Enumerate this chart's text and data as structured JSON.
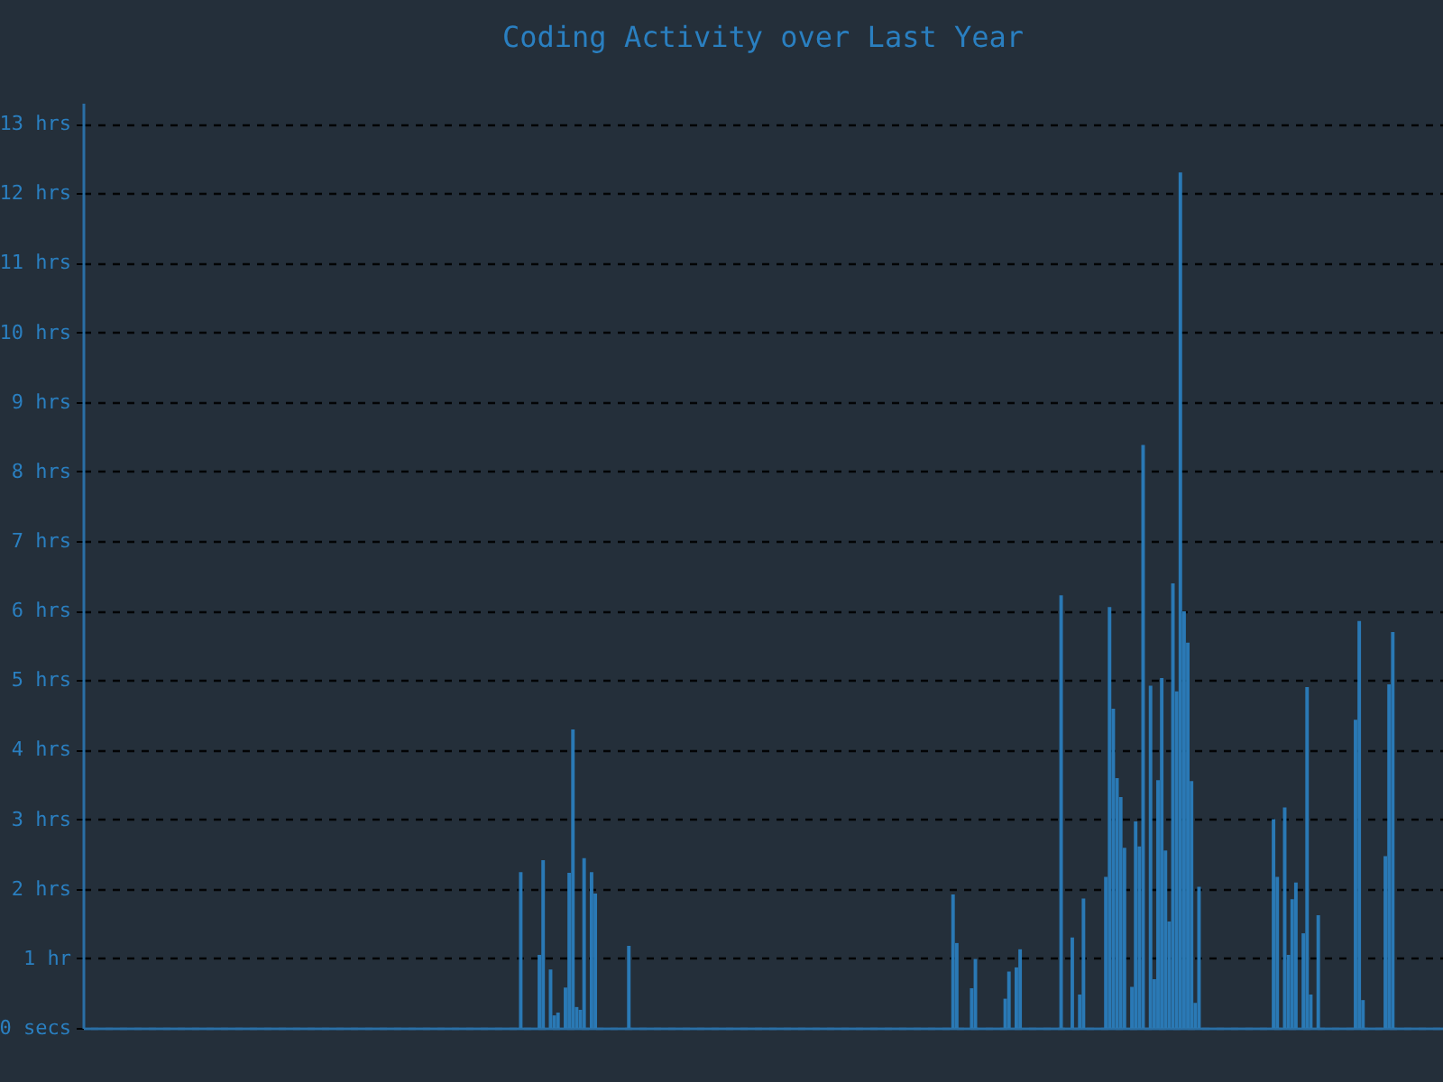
{
  "chart_data": {
    "type": "bar",
    "title": "Coding Activity over Last Year",
    "color": "#2a79b5",
    "grid": true,
    "tick_labels": "y",
    "ylim": [
      0,
      13.3
    ],
    "yticks": [
      {
        "value": 0,
        "label": "0 secs"
      },
      {
        "value": 1,
        "label": "1 hr"
      },
      {
        "value": 2,
        "label": "2 hrs"
      },
      {
        "value": 3,
        "label": "3 hrs"
      },
      {
        "value": 4,
        "label": "4 hrs"
      },
      {
        "value": 5,
        "label": "5 hrs"
      },
      {
        "value": 6,
        "label": "6 hrs"
      },
      {
        "value": 7,
        "label": "7 hrs"
      },
      {
        "value": 8,
        "label": "8 hrs"
      },
      {
        "value": 9,
        "label": "9 hrs"
      },
      {
        "value": 10,
        "label": "10 hrs"
      },
      {
        "value": 11,
        "label": "11 hrs"
      },
      {
        "value": 12,
        "label": "12 hrs"
      },
      {
        "value": 13,
        "label": "13 hrs"
      }
    ],
    "categories": [
      null,
      null,
      null,
      null,
      null,
      null,
      null,
      null,
      null,
      null,
      null,
      null,
      null,
      null,
      null,
      null,
      null,
      null,
      null,
      null,
      null,
      null,
      null,
      null,
      null,
      null,
      null,
      null,
      null,
      null,
      null,
      null,
      null,
      null,
      null,
      null,
      null,
      null,
      null,
      null,
      null,
      null,
      null,
      null,
      null,
      null,
      null,
      null,
      null,
      null,
      null,
      null,
      null,
      null,
      null,
      null,
      null,
      null,
      null,
      null,
      null,
      null,
      null,
      null,
      null,
      null,
      null,
      null,
      null,
      null,
      null,
      null,
      null,
      null,
      null,
      null,
      null,
      null,
      null,
      null,
      null,
      null,
      null,
      null,
      null,
      null,
      null,
      null,
      null,
      null,
      null,
      null,
      null,
      null,
      null,
      null,
      null,
      null,
      null,
      null,
      null,
      null,
      null,
      null,
      null,
      null,
      null,
      null,
      null,
      null,
      null,
      null,
      null,
      null,
      null,
      null,
      null,
      null,
      null,
      null,
      null,
      null,
      null,
      null,
      null,
      null,
      null,
      null,
      null,
      null,
      null,
      null,
      null,
      null,
      null,
      null,
      null,
      null,
      null,
      null,
      null,
      null,
      null,
      null,
      null,
      null,
      null,
      null,
      null,
      null,
      null,
      null,
      null,
      null,
      null,
      null,
      null,
      null,
      null,
      null,
      null,
      null,
      null,
      null,
      null,
      null,
      null,
      null,
      null,
      null,
      null,
      null,
      null,
      null,
      null,
      null,
      null,
      null,
      null,
      null,
      null,
      null,
      null,
      null,
      null,
      null,
      null,
      null,
      null,
      null,
      null,
      null,
      null,
      null,
      null,
      null,
      null,
      null,
      null,
      null,
      null,
      null,
      null,
      null,
      null,
      null,
      null,
      null,
      null,
      null,
      null,
      null,
      null,
      null,
      null,
      null,
      null,
      null,
      null,
      null,
      null,
      null,
      null,
      null,
      null,
      null,
      null,
      null,
      null,
      null,
      null,
      null,
      null,
      null,
      null,
      null,
      null,
      null,
      null,
      null,
      null,
      null,
      null,
      null,
      null,
      null,
      null,
      null,
      null,
      null,
      null,
      null,
      null,
      null,
      null,
      null,
      null,
      null,
      null,
      null,
      null,
      null,
      null,
      null,
      null,
      null,
      null,
      null,
      null,
      null,
      null,
      null,
      null,
      null,
      null,
      null,
      null,
      null,
      null,
      null,
      null,
      null,
      null,
      null,
      null,
      null,
      null,
      null,
      null,
      null,
      null,
      null,
      null,
      null,
      null,
      null,
      null,
      null,
      null,
      null,
      null,
      null,
      null,
      null,
      null,
      null,
      null,
      null,
      null,
      null,
      null,
      null,
      null,
      null,
      null,
      null,
      null,
      null,
      null,
      null,
      null,
      null,
      null,
      null,
      null,
      null,
      null,
      null,
      null,
      null,
      null,
      null,
      null,
      null,
      null,
      null,
      null,
      null,
      null,
      null,
      null,
      null,
      null,
      null,
      null,
      null,
      null,
      null,
      null,
      null,
      null,
      null,
      null,
      null,
      null,
      null,
      null,
      null,
      null,
      null,
      null,
      null,
      null,
      null,
      null
    ],
    "values": [
      0,
      0,
      0,
      0,
      0,
      0,
      0,
      0,
      0,
      0,
      0,
      0,
      0,
      0,
      0,
      0,
      0,
      0,
      0,
      0,
      0,
      0,
      0,
      0,
      0,
      0,
      0,
      0,
      0,
      0,
      0,
      0,
      0,
      0,
      0,
      0,
      0,
      0,
      0,
      0,
      0,
      0,
      0,
      0,
      0,
      0,
      0,
      0,
      0,
      0,
      0,
      0,
      0,
      0,
      0,
      0,
      0,
      0,
      0,
      0,
      0,
      0,
      0,
      0,
      0,
      0,
      0,
      0,
      0,
      0,
      0,
      0,
      0,
      0,
      0,
      0,
      0,
      0,
      0,
      0,
      0,
      0,
      0,
      0,
      0,
      0,
      0,
      0,
      0,
      0,
      0,
      0,
      0,
      0,
      0,
      0,
      0,
      0,
      0,
      0,
      0,
      0,
      0,
      0,
      0,
      0,
      0,
      0,
      0,
      0,
      0,
      0,
      0,
      0,
      0,
      0,
      0,
      2.24,
      0,
      0,
      0,
      0,
      1.05,
      2.41,
      0,
      0.84,
      0.18,
      0.22,
      0,
      0.58,
      2.23,
      4.29,
      0.3,
      0.26,
      2.44,
      0,
      2.24,
      1.93,
      0,
      0,
      0,
      0,
      0,
      0,
      0,
      0,
      1.18,
      0,
      0,
      0,
      0,
      0,
      0,
      0,
      0,
      0,
      0,
      0,
      0,
      0,
      0,
      0,
      0,
      0,
      0,
      0,
      0,
      0,
      0,
      0,
      0,
      0,
      0,
      0,
      0,
      0,
      0,
      0,
      0,
      0,
      0,
      0,
      0,
      0,
      0,
      0,
      0,
      0,
      0,
      0,
      0,
      0,
      0,
      0,
      0,
      0,
      0,
      0,
      0,
      0,
      0,
      0,
      0,
      0,
      0,
      0,
      0,
      0,
      0,
      0,
      0,
      0,
      0,
      0,
      0,
      0,
      0,
      0,
      0,
      0,
      0,
      0,
      0,
      0,
      0,
      0,
      0,
      0,
      0,
      0,
      0,
      0,
      0,
      1.92,
      1.22,
      0,
      0,
      0,
      0.57,
      0.99,
      0,
      0,
      0,
      0,
      0,
      0,
      0,
      0.42,
      0.81,
      0,
      0.87,
      1.13,
      0,
      0,
      0,
      0,
      0,
      0,
      0,
      0,
      0,
      0,
      6.22,
      0,
      0,
      1.3,
      0,
      0.48,
      1.86,
      0,
      0,
      0,
      0,
      0,
      2.17,
      6.05,
      4.59,
      3.59,
      3.32,
      2.59,
      0,
      0.59,
      2.97,
      2.61,
      8.38,
      0,
      4.92,
      0.7,
      3.56,
      5.03,
      2.55,
      1.53,
      6.39,
      4.84,
      12.3,
      5.99,
      5.54,
      3.55,
      0.36,
      2.03,
      0,
      0,
      0,
      0,
      0,
      0,
      0,
      0,
      0,
      0,
      0,
      0,
      0,
      0,
      0,
      0,
      0,
      0,
      0,
      3.0,
      2.17,
      0,
      3.17,
      1.05,
      1.85,
      2.09,
      0,
      1.36,
      4.9,
      0.48,
      0,
      1.62,
      0,
      0,
      0,
      0,
      0,
      0,
      0,
      0,
      0,
      4.43,
      5.85,
      0.4,
      0,
      0,
      0,
      0,
      0,
      2.47,
      4.94,
      5.69,
      0,
      0,
      0,
      0,
      0,
      0,
      0,
      0,
      0,
      0,
      0,
      0,
      0
    ]
  }
}
